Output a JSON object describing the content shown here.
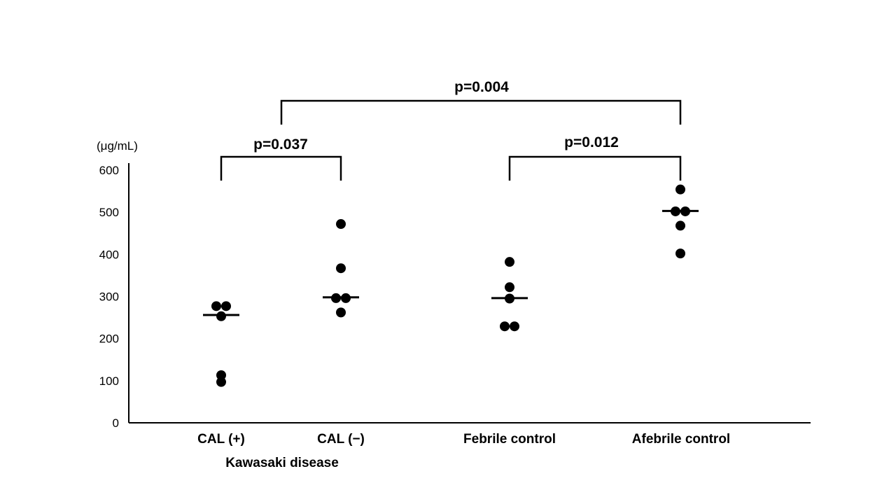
{
  "chart_data": {
    "type": "scatter",
    "unit_label": "(μg/mL)",
    "ylim": [
      0,
      600
    ],
    "yticks": [
      "0",
      "100",
      "200",
      "300",
      "400",
      "500",
      "600"
    ],
    "group_label": "Kawasaki disease",
    "categories": [
      "CAL (+)",
      "CAL (−)",
      "Febrile control",
      "Afebrile control"
    ],
    "groups": [
      {
        "category": "CAL (+)",
        "points": [
          277,
          277,
          253,
          113,
          97
        ],
        "median": 256
      },
      {
        "category": "CAL (−)",
        "points": [
          472,
          367,
          296,
          296,
          262
        ],
        "median": 298
      },
      {
        "category": "Febrile control",
        "points": [
          382,
          322,
          295,
          229,
          229
        ],
        "median": 296
      },
      {
        "category": "Afebrile control",
        "points": [
          554,
          502,
          502,
          468,
          402
        ],
        "median": 503
      }
    ],
    "comparisons": [
      {
        "from": "CAL (+)",
        "to": "CAL (−)",
        "label": "p=0.037"
      },
      {
        "from": "Febrile control",
        "to": "Afebrile control",
        "label": "p=0.012"
      },
      {
        "from": "CAL (−) / CAL (+)",
        "to": "Afebrile control",
        "label": "p=0.004"
      }
    ],
    "grid": false,
    "legend": "none"
  }
}
